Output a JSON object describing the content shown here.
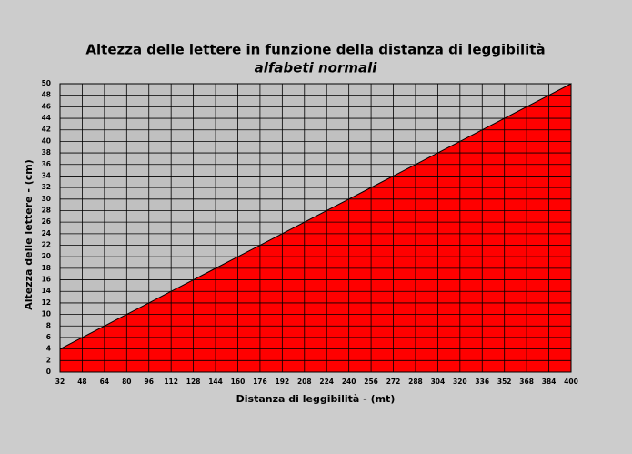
{
  "chart_data": {
    "type": "area",
    "title": "Altezza delle lettere in funzione della distanza di leggibilità",
    "subtitle": "alfabeti normali",
    "x_label": "Distanza di leggibilità - (mt)",
    "y_label": "Altezza delle lettere - (cm)",
    "x": [
      32,
      48,
      64,
      80,
      96,
      112,
      128,
      144,
      160,
      176,
      192,
      208,
      224,
      240,
      256,
      272,
      288,
      304,
      320,
      336,
      352,
      368,
      384,
      400
    ],
    "values": [
      4,
      6,
      8,
      10,
      12,
      14,
      16,
      18,
      20,
      22,
      24,
      26,
      28,
      30,
      32,
      34,
      36,
      38,
      40,
      42,
      44,
      46,
      48,
      50
    ],
    "color": "#ff0000",
    "xlim": [
      32,
      400
    ],
    "xticks": [
      32,
      48,
      64,
      80,
      96,
      112,
      128,
      144,
      160,
      176,
      192,
      208,
      224,
      240,
      256,
      272,
      288,
      304,
      320,
      336,
      352,
      368,
      384,
      400
    ],
    "ylim": [
      0,
      50
    ],
    "yticks": [
      0,
      2,
      4,
      6,
      8,
      10,
      12,
      14,
      16,
      18,
      20,
      22,
      24,
      26,
      28,
      30,
      32,
      34,
      36,
      38,
      40,
      42,
      44,
      46,
      48,
      50
    ],
    "grid": true
  }
}
